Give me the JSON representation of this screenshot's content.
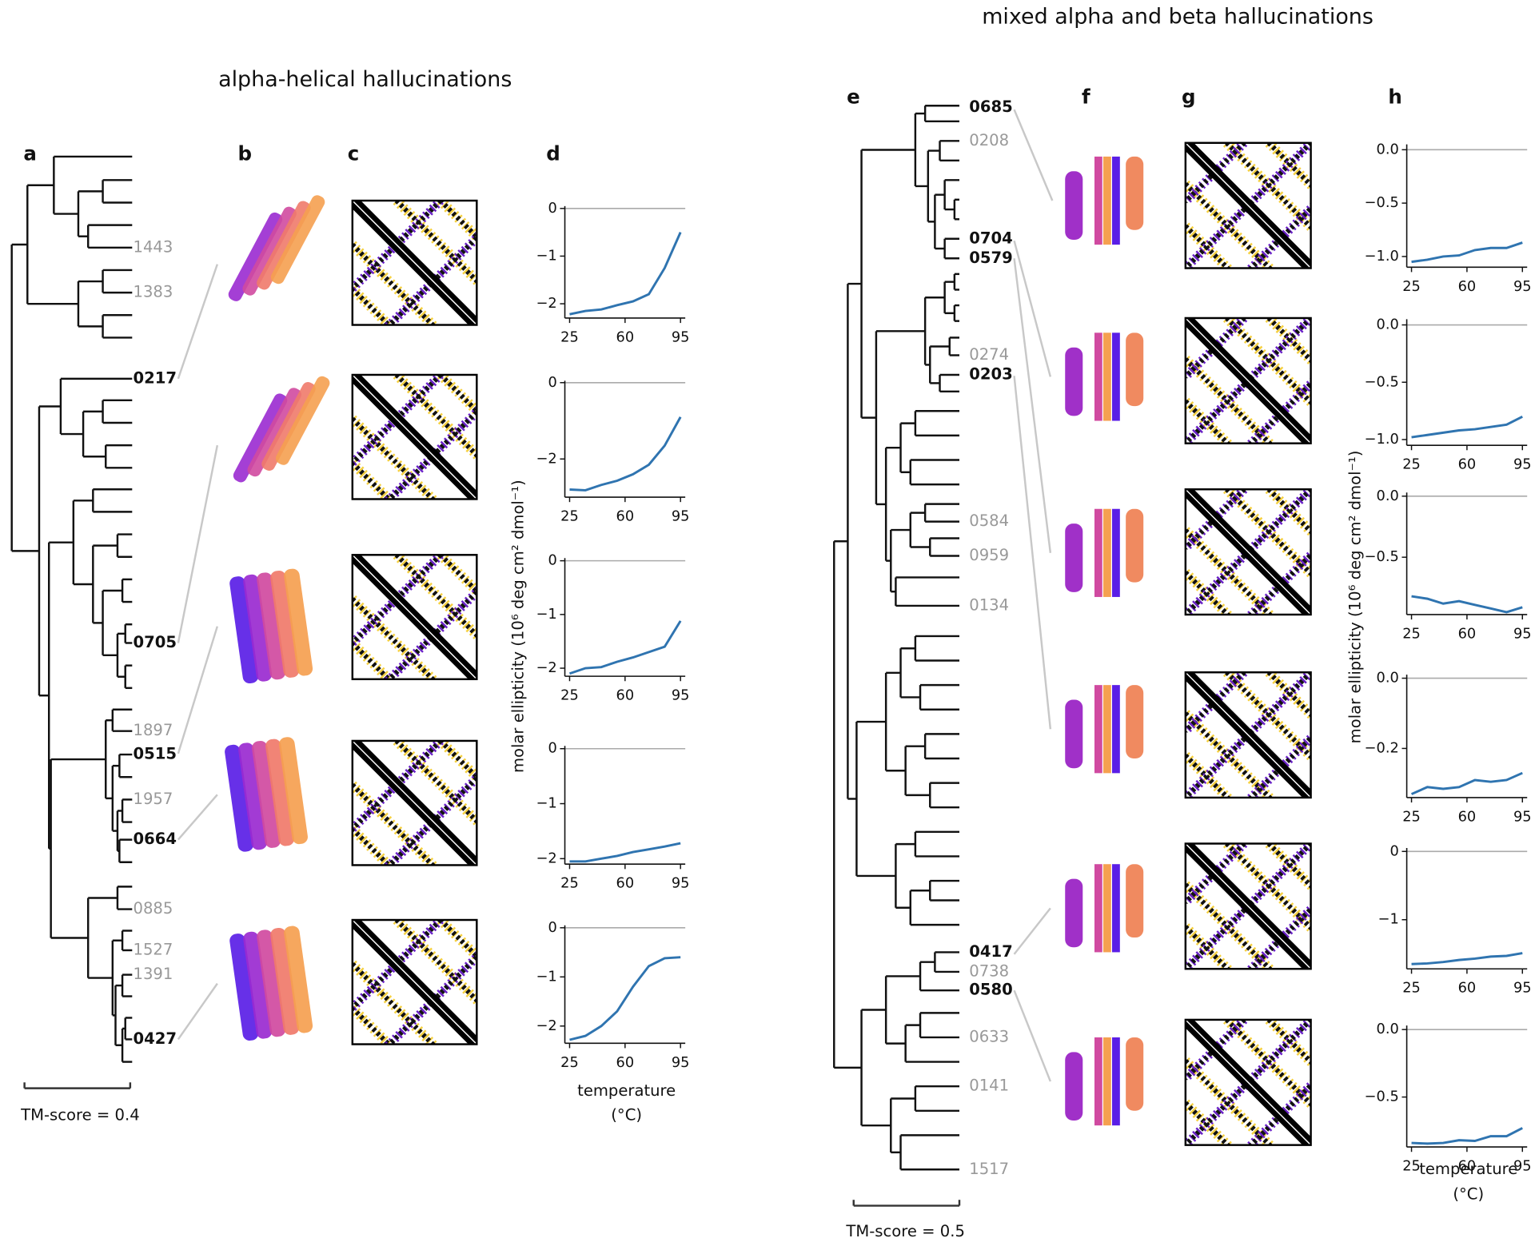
{
  "panels": {
    "left_title": "alpha-helical hallucinations",
    "right_title": "mixed alpha and beta hallucinations",
    "letters": [
      "a",
      "b",
      "c",
      "d",
      "e",
      "f",
      "g",
      "h"
    ],
    "left_leaves": [
      {
        "label": "1443",
        "bold": false
      },
      {
        "label": "1383",
        "bold": false
      },
      {
        "label": "0217",
        "bold": true
      },
      {
        "label": "0705",
        "bold": true
      },
      {
        "label": "1897",
        "bold": false
      },
      {
        "label": "0515",
        "bold": true
      },
      {
        "label": "1957",
        "bold": false
      },
      {
        "label": "0664",
        "bold": true
      },
      {
        "label": "0885",
        "bold": false
      },
      {
        "label": "1527",
        "bold": false
      },
      {
        "label": "1391",
        "bold": false
      },
      {
        "label": "0427",
        "bold": true
      }
    ],
    "right_leaves": [
      {
        "label": "0685",
        "bold": true
      },
      {
        "label": "0208",
        "bold": false
      },
      {
        "label": "0704",
        "bold": true
      },
      {
        "label": "0579",
        "bold": true
      },
      {
        "label": "0274",
        "bold": false
      },
      {
        "label": "0203",
        "bold": true
      },
      {
        "label": "0584",
        "bold": false
      },
      {
        "label": "0959",
        "bold": false
      },
      {
        "label": "0134",
        "bold": false
      },
      {
        "label": "0417",
        "bold": true
      },
      {
        "label": "0738",
        "bold": false
      },
      {
        "label": "0580",
        "bold": true
      },
      {
        "label": "0633",
        "bold": false
      },
      {
        "label": "0141",
        "bold": false
      },
      {
        "label": "1517",
        "bold": false
      }
    ],
    "left_scale": "TM-score = 0.4",
    "right_scale": "TM-score = 0.5",
    "y_label": "molar ellipticity (10⁶ deg cm² dmol⁻¹)",
    "x_label": [
      "temperature",
      "(°C)"
    ]
  },
  "chart_data": [
    {
      "type": "line",
      "x": [
        25,
        35,
        45,
        55,
        65,
        75,
        85,
        95
      ],
      "values": [
        -2.22,
        -2.15,
        -2.12,
        -2.03,
        -1.95,
        -1.8,
        -1.25,
        -0.5
      ],
      "color": "#2f74b0",
      "xlim": [
        22,
        98
      ],
      "xticks": [
        25,
        60,
        95
      ],
      "ylim": [
        -2.3,
        0.05
      ],
      "yticks": [
        0,
        {
          "value": -1,
          "label": "−1"
        },
        {
          "value": -2,
          "label": "−2"
        }
      ],
      "hline": 0
    },
    {
      "type": "line",
      "x": [
        25,
        35,
        45,
        55,
        65,
        75,
        85,
        95
      ],
      "values": [
        -2.8,
        -2.82,
        -2.68,
        -2.57,
        -2.4,
        -2.15,
        -1.65,
        -0.9
      ],
      "color": "#2f74b0",
      "xlim": [
        22,
        98
      ],
      "xticks": [
        25,
        60,
        95
      ],
      "ylim": [
        -3.0,
        0.05
      ],
      "yticks": [
        0,
        {
          "value": -2,
          "label": "−2"
        }
      ],
      "hline": 0
    },
    {
      "type": "line",
      "x": [
        25,
        35,
        45,
        55,
        65,
        75,
        85,
        95
      ],
      "values": [
        -2.1,
        -2.0,
        -1.98,
        -1.88,
        -1.8,
        -1.7,
        -1.6,
        -1.12
      ],
      "color": "#2f74b0",
      "xlim": [
        22,
        98
      ],
      "xticks": [
        25,
        60,
        95
      ],
      "ylim": [
        -2.15,
        0.05
      ],
      "yticks": [
        0,
        {
          "value": -1,
          "label": "−1"
        },
        {
          "value": -2,
          "label": "−2"
        }
      ],
      "hline": 0
    },
    {
      "type": "line",
      "x": [
        25,
        35,
        45,
        55,
        65,
        75,
        85,
        95
      ],
      "values": [
        -2.05,
        -2.05,
        -2.0,
        -1.95,
        -1.88,
        -1.83,
        -1.78,
        -1.72
      ],
      "color": "#2f74b0",
      "xlim": [
        22,
        98
      ],
      "xticks": [
        25,
        60,
        95
      ],
      "ylim": [
        -2.1,
        0.05
      ],
      "yticks": [
        0,
        {
          "value": -1,
          "label": "−1"
        },
        {
          "value": -2,
          "label": "−2"
        }
      ],
      "hline": 0
    },
    {
      "type": "line",
      "x": [
        25,
        35,
        45,
        55,
        65,
        75,
        85,
        95
      ],
      "values": [
        -2.28,
        -2.2,
        -2.0,
        -1.7,
        -1.2,
        -0.78,
        -0.62,
        -0.6
      ],
      "color": "#2f74b0",
      "xlim": [
        22,
        98
      ],
      "xticks": [
        25,
        60,
        95
      ],
      "ylim": [
        -2.35,
        0.05
      ],
      "yticks": [
        0,
        {
          "value": -1,
          "label": "−1"
        },
        {
          "value": -2,
          "label": "−2"
        }
      ],
      "hline": 0
    },
    {
      "type": "line",
      "x": [
        25,
        35,
        45,
        55,
        65,
        75,
        85,
        95
      ],
      "values": [
        -1.05,
        -1.03,
        -1.0,
        -0.99,
        -0.94,
        -0.92,
        -0.92,
        -0.87
      ],
      "color": "#2f74b0",
      "xlim": [
        22,
        98
      ],
      "xticks": [
        25,
        60,
        95
      ],
      "ylim": [
        -1.1,
        0.05
      ],
      "yticks": [
        {
          "value": 0,
          "label": "0.0"
        },
        {
          "value": -0.5,
          "label": "−0.5"
        },
        {
          "value": -1,
          "label": "−1.0"
        }
      ],
      "hline": 0
    },
    {
      "type": "line",
      "x": [
        25,
        35,
        45,
        55,
        65,
        75,
        85,
        95
      ],
      "values": [
        -0.98,
        -0.96,
        -0.94,
        -0.92,
        -0.91,
        -0.89,
        -0.87,
        -0.8
      ],
      "color": "#2f74b0",
      "xlim": [
        22,
        98
      ],
      "xticks": [
        25,
        60,
        95
      ],
      "ylim": [
        -1.05,
        0.05
      ],
      "yticks": [
        {
          "value": 0,
          "label": "0.0"
        },
        {
          "value": -0.5,
          "label": "−0.5"
        },
        {
          "value": -1,
          "label": "−1.0"
        }
      ],
      "hline": 0
    },
    {
      "type": "line",
      "x": [
        25,
        35,
        45,
        55,
        65,
        75,
        85,
        95
      ],
      "values": [
        -0.82,
        -0.84,
        -0.88,
        -0.86,
        -0.89,
        -0.92,
        -0.95,
        -0.91
      ],
      "color": "#2f74b0",
      "xlim": [
        22,
        98
      ],
      "xticks": [
        25,
        60,
        95
      ],
      "ylim": [
        -0.97,
        0.03
      ],
      "yticks": [
        {
          "value": 0,
          "label": "0.0"
        },
        {
          "value": -0.5,
          "label": "−0.5"
        }
      ],
      "hline": 0
    },
    {
      "type": "line",
      "x": [
        25,
        35,
        45,
        55,
        65,
        75,
        85,
        95
      ],
      "values": [
        -0.33,
        -0.31,
        -0.315,
        -0.31,
        -0.29,
        -0.295,
        -0.29,
        -0.27
      ],
      "color": "#2f74b0",
      "xlim": [
        22,
        98
      ],
      "xticks": [
        25,
        60,
        95
      ],
      "ylim": [
        -0.34,
        0.01
      ],
      "yticks": [
        {
          "value": 0,
          "label": "0.0"
        },
        {
          "value": -0.2,
          "label": "−0.2"
        }
      ],
      "hline": 0
    },
    {
      "type": "line",
      "x": [
        25,
        35,
        45,
        55,
        65,
        75,
        85,
        95
      ],
      "values": [
        -1.65,
        -1.64,
        -1.62,
        -1.59,
        -1.57,
        -1.54,
        -1.53,
        -1.49
      ],
      "color": "#2f74b0",
      "xlim": [
        22,
        98
      ],
      "xticks": [
        25,
        60,
        95
      ],
      "ylim": [
        -1.72,
        0.05
      ],
      "yticks": [
        0,
        {
          "value": -1,
          "label": "−1"
        }
      ],
      "hline": 0
    },
    {
      "type": "line",
      "x": [
        25,
        35,
        45,
        55,
        65,
        75,
        85,
        95
      ],
      "values": [
        -0.84,
        -0.845,
        -0.84,
        -0.82,
        -0.825,
        -0.79,
        -0.79,
        -0.73
      ],
      "color": "#2f74b0",
      "xlim": [
        22,
        98
      ],
      "xticks": [
        25,
        60,
        95
      ],
      "ylim": [
        -0.87,
        0.03
      ],
      "yticks": [
        {
          "value": 0,
          "label": "0.0"
        },
        {
          "value": -0.5,
          "label": "−0.5"
        }
      ],
      "hline": 0
    }
  ]
}
